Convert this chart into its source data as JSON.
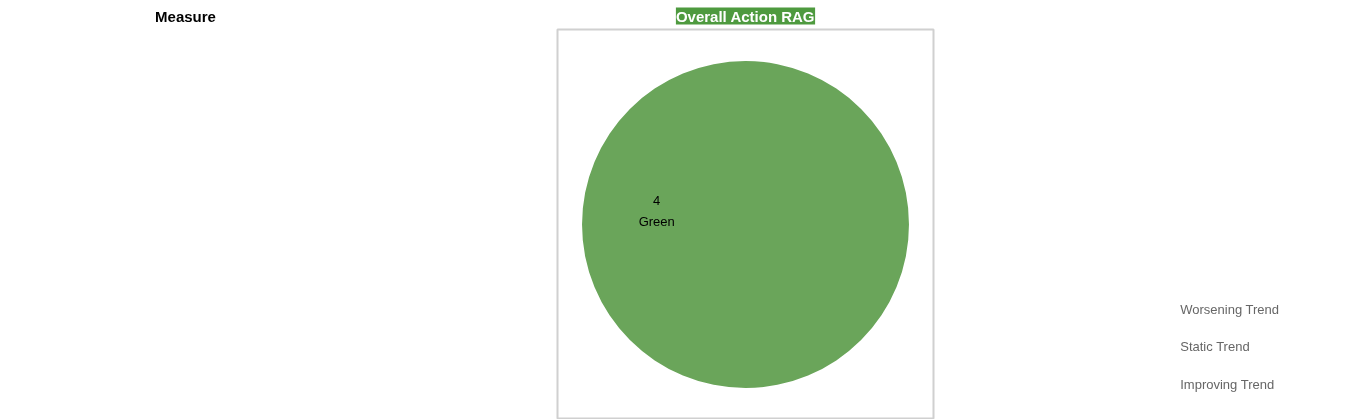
{
  "chart_data": [
    {
      "type": "other",
      "title": "Measure"
    },
    {
      "type": "pie",
      "title": "Overall Action RAG",
      "categories": [
        "Green"
      ],
      "values": [
        4
      ],
      "colors": [
        "#6aa55a"
      ],
      "data_labels": true
    },
    {
      "type": "other",
      "annotations": [
        "Worsening Trend",
        "Static Trend",
        "Improving Trend"
      ]
    }
  ]
}
